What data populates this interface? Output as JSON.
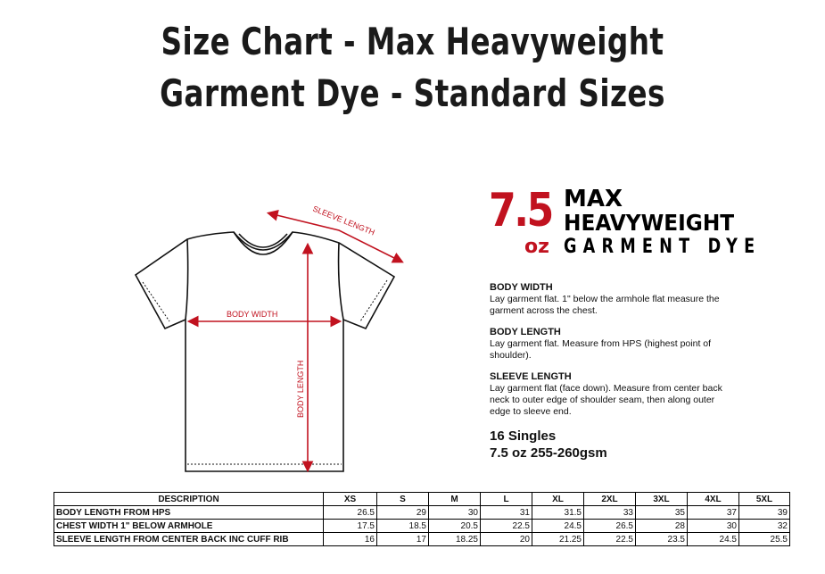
{
  "title_line1": "Size Chart - Max Heavyweight",
  "title_line2": "Garment Dye - Standard Sizes",
  "diagram": {
    "sleeve_label": "SLEEVE LENGTH",
    "width_label": "BODY WIDTH",
    "length_label": "BODY LENGTH",
    "arrow_color": "#c1121f"
  },
  "logo": {
    "num": "7.5",
    "unit": "oz",
    "line1": "MAX",
    "line2": "HEAVYWEIGHT",
    "line3": "GARMENT DYE",
    "accent": "#c1121f"
  },
  "info": [
    {
      "heading": "BODY WIDTH",
      "text": "Lay garment flat. 1\" below the armhole flat measure the garment across the chest."
    },
    {
      "heading": "BODY LENGTH",
      "text": "Lay garment flat. Measure from HPS (highest point of shoulder)."
    },
    {
      "heading": "SLEEVE LENGTH",
      "text": "Lay garment flat (face down). Measure from center back neck to outer edge of shoulder seam, then along outer edge to sleeve end."
    }
  ],
  "weights": {
    "line1": "16 Singles",
    "line2": "7.5 oz 255-260gsm"
  },
  "table": {
    "headers": [
      "DESCRIPTION",
      "XS",
      "S",
      "M",
      "L",
      "XL",
      "2XL",
      "3XL",
      "4XL",
      "5XL"
    ],
    "rows": [
      {
        "desc": "BODY LENGTH FROM HPS",
        "values": [
          "26.5",
          "29",
          "30",
          "31",
          "31.5",
          "33",
          "35",
          "37",
          "39"
        ]
      },
      {
        "desc": "CHEST WIDTH 1\" BELOW ARMHOLE",
        "values": [
          "17.5",
          "18.5",
          "20.5",
          "22.5",
          "24.5",
          "26.5",
          "28",
          "30",
          "32"
        ]
      },
      {
        "desc": "SLEEVE LENGTH FROM CENTER BACK INC CUFF RIB",
        "values": [
          "16",
          "17",
          "18.25",
          "20",
          "21.25",
          "22.5",
          "23.5",
          "24.5",
          "25.5"
        ]
      }
    ]
  }
}
